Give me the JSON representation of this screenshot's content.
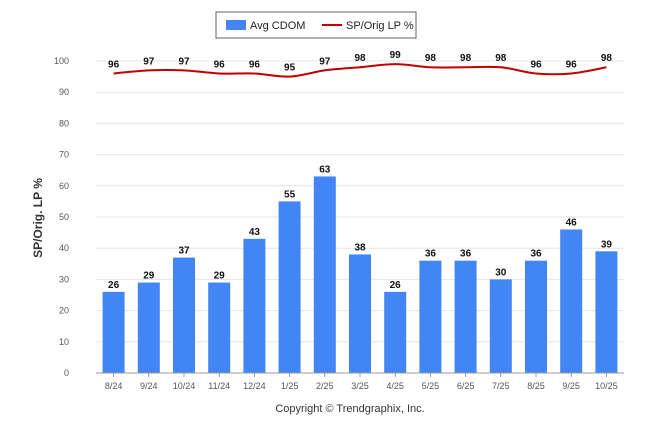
{
  "chart_data": {
    "type": "bar",
    "categories": [
      "8/24",
      "9/24",
      "10/24",
      "11/24",
      "12/24",
      "1/25",
      "2/25",
      "3/25",
      "4/25",
      "5/25",
      "6/25",
      "7/25",
      "8/25",
      "9/25",
      "10/25"
    ],
    "series": [
      {
        "name": "Avg CDOM",
        "type": "bar",
        "color": "#4285f4",
        "values": [
          26,
          29,
          37,
          29,
          43,
          55,
          63,
          38,
          26,
          36,
          36,
          30,
          36,
          46,
          39
        ]
      },
      {
        "name": "SP/Orig LP %",
        "type": "line",
        "color": "#c00000",
        "values": [
          96,
          97,
          97,
          96,
          96,
          95,
          97,
          98,
          99,
          98,
          98,
          98,
          96,
          96,
          98
        ]
      }
    ],
    "ylabel": "SP/Orig. LP %",
    "ylim": [
      0,
      100
    ],
    "yticks": [
      0,
      10,
      20,
      30,
      40,
      50,
      60,
      70,
      80,
      90,
      100
    ],
    "grid": true,
    "legend": "top-center"
  },
  "footer": {
    "copyright": "Copyright © Trendgraphix, Inc."
  }
}
